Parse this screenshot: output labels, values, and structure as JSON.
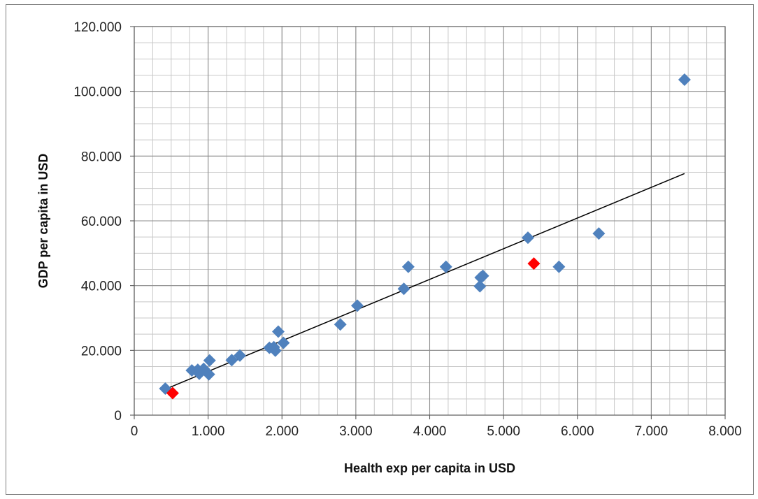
{
  "chart_data": {
    "type": "scatter",
    "title": "",
    "xlabel": "Health exp per capita in USD",
    "ylabel": "GDP per capita in USD",
    "xlim": [
      0,
      8000
    ],
    "ylim": [
      0,
      120000
    ],
    "x_ticks": [
      0,
      1000,
      2000,
      3000,
      4000,
      5000,
      6000,
      7000,
      8000
    ],
    "x_tick_labels": [
      "0",
      "1.000",
      "2.000",
      "3.000",
      "4.000",
      "5.000",
      "6.000",
      "7.000",
      "8.000"
    ],
    "y_ticks": [
      0,
      20000,
      40000,
      60000,
      80000,
      100000,
      120000
    ],
    "y_tick_labels": [
      "0",
      "20.000",
      "40.000",
      "60.000",
      "80.000",
      "100.000",
      "120.000"
    ],
    "grid": true,
    "minor_grid_x_step": 250,
    "minor_grid_y_step": 5000,
    "legend": "none",
    "series": [
      {
        "color": "#4F81BD",
        "marker": "diamond",
        "points": [
          [
            420,
            8200
          ],
          [
            780,
            13800
          ],
          [
            860,
            14000
          ],
          [
            880,
            12800
          ],
          [
            940,
            14300
          ],
          [
            1010,
            12600
          ],
          [
            1020,
            16900
          ],
          [
            1320,
            17000
          ],
          [
            1430,
            18400
          ],
          [
            1830,
            20800
          ],
          [
            1890,
            21000
          ],
          [
            1910,
            19900
          ],
          [
            1950,
            25800
          ],
          [
            2020,
            22300
          ],
          [
            2790,
            28000
          ],
          [
            3020,
            33800
          ],
          [
            3650,
            39000
          ],
          [
            3710,
            45800
          ],
          [
            4220,
            45800
          ],
          [
            4680,
            39800
          ],
          [
            4690,
            42500
          ],
          [
            4720,
            43000
          ],
          [
            5330,
            54800
          ],
          [
            5750,
            45800
          ],
          [
            6290,
            56100
          ],
          [
            7450,
            103600
          ]
        ]
      },
      {
        "color": "#FF0000",
        "marker": "diamond",
        "points": [
          [
            520,
            6800
          ],
          [
            5410,
            46800
          ]
        ]
      }
    ],
    "trendline": {
      "type": "linear",
      "color": "#000000",
      "x": [
        420,
        7450
      ],
      "y": [
        8000,
        74600
      ]
    }
  }
}
